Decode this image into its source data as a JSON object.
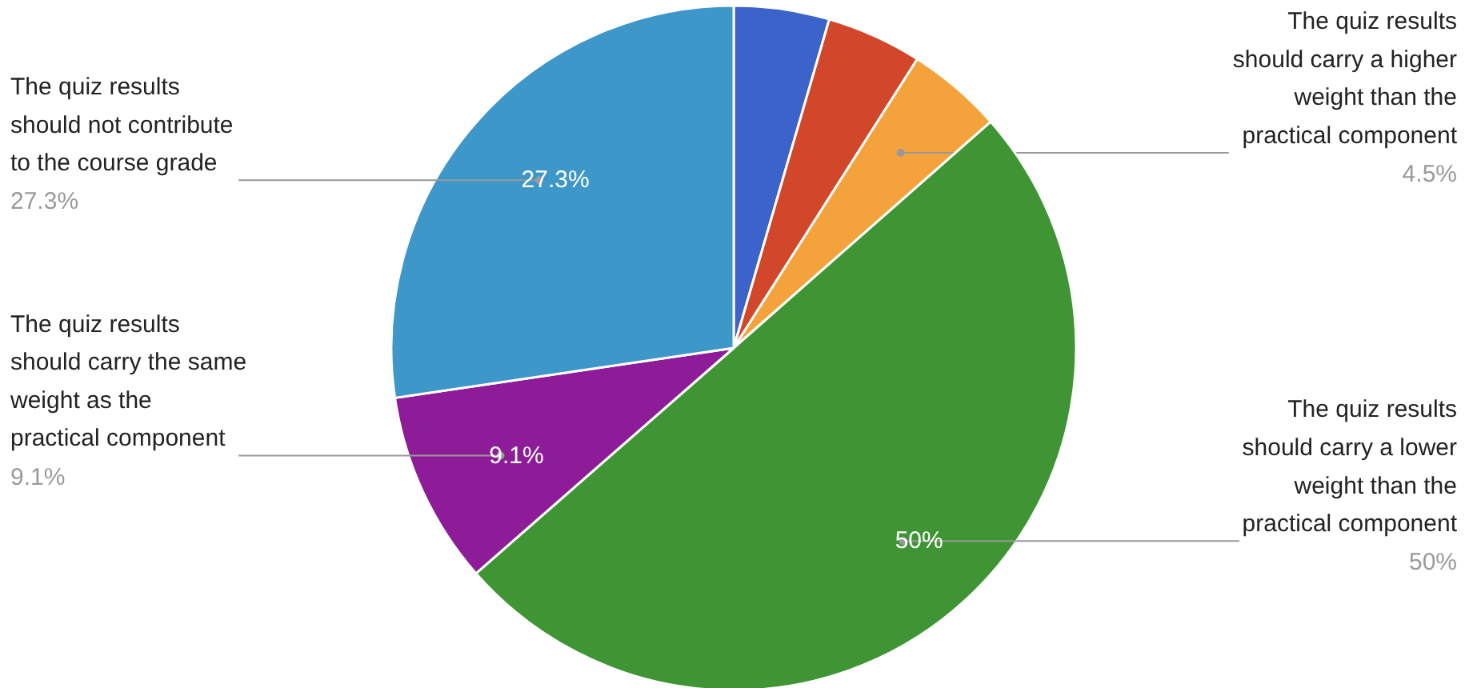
{
  "chart_data": {
    "type": "pie",
    "categories": [
      null,
      null,
      "The quiz results should carry a higher weight than the practical component",
      "The quiz results should carry a lower weight than the practical component",
      "The quiz results should carry the same weight as the practical component",
      "The quiz results should not contribute to the course grade"
    ],
    "values": [
      4.5,
      4.5,
      4.5,
      50,
      9.1,
      27.3
    ],
    "colors": [
      "#3c63c9",
      "#d2472a",
      "#f4a23b",
      "#3f9533",
      "#8e1c99",
      "#3d97c9"
    ],
    "value_labels": [
      null,
      null,
      "4.5%",
      "50%",
      "9.1%",
      "27.3%"
    ],
    "legend": false
  }
}
